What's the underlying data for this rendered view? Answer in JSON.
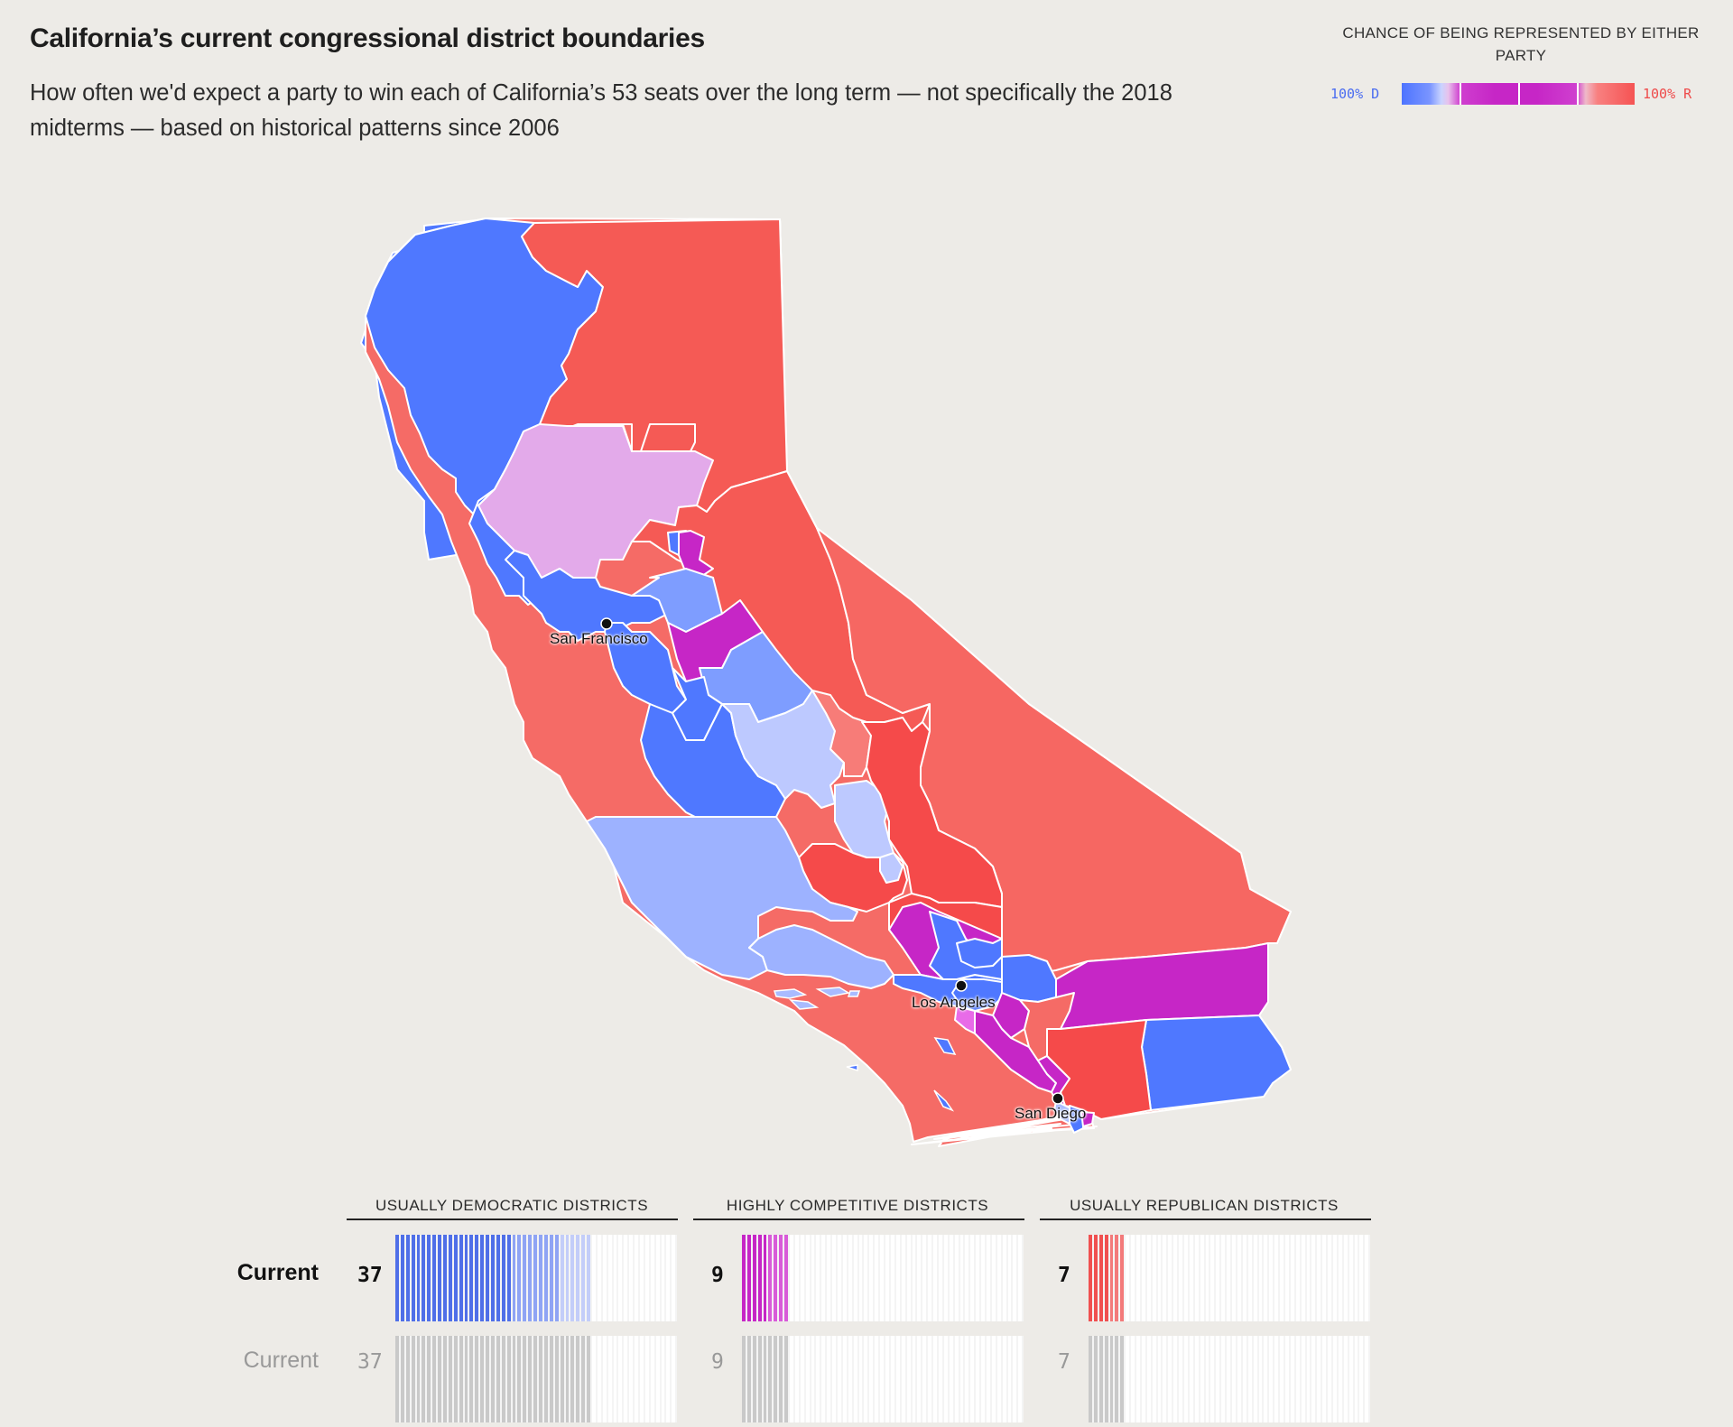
{
  "header": {
    "title": "California’s current congressional district boundaries",
    "subtitle": "How often we'd expect a party to win each of California’s 53 seats over the long term — not specifically the 2018 midterms — based on historical patterns since 2006"
  },
  "legend": {
    "title": "CHANCE OF BEING REPRESENTED BY EITHER PARTY",
    "left_label": "100% D",
    "right_label": "100% R",
    "colors": {
      "dem": "#4d73ff",
      "competitive": "#c626c6",
      "rep": "#f55353"
    }
  },
  "map": {
    "cities": [
      {
        "name": "San Francisco"
      },
      {
        "name": "Los Angeles"
      },
      {
        "name": "San Diego"
      }
    ]
  },
  "summary": {
    "categories": [
      {
        "label": "USUALLY DEMOCRATIC DISTRICTS"
      },
      {
        "label": "HIGHLY COMPETITIVE DISTRICTS"
      },
      {
        "label": "USUALLY REPUBLICAN DISTRICTS"
      }
    ],
    "rows": [
      {
        "label": "Current",
        "counts": [
          "37",
          "9",
          "7"
        ]
      },
      {
        "label": "Current",
        "counts": [
          "37",
          "9",
          "7"
        ]
      }
    ],
    "total_seats": 53
  }
}
